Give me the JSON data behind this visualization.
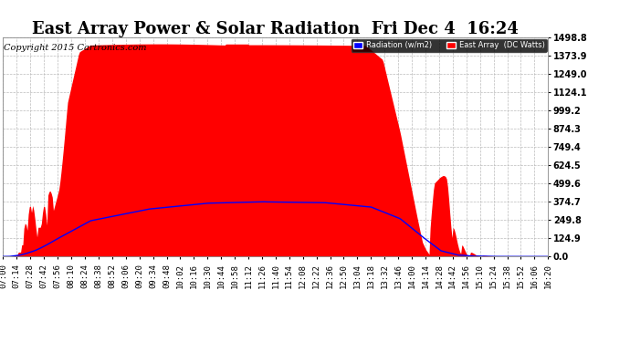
{
  "title": "East Array Power & Solar Radiation  Fri Dec 4  16:24",
  "copyright": "Copyright 2015 Cartronics.com",
  "legend_radiation": "Radiation (w/m2)",
  "legend_east_array": "East Array  (DC Watts)",
  "bg_color": "#ffffff",
  "plot_bg_color": "#ffffff",
  "grid_color": "#bbbbbb",
  "fill_color": "#ff0000",
  "line_color": "#0000ff",
  "ytick_labels": [
    "0.0",
    "124.9",
    "249.8",
    "374.7",
    "499.6",
    "624.5",
    "749.4",
    "874.3",
    "999.2",
    "1124.1",
    "1249.0",
    "1373.9",
    "1498.8"
  ],
  "ytick_values": [
    0.0,
    124.9,
    249.8,
    374.7,
    499.6,
    624.5,
    749.4,
    874.3,
    999.2,
    1124.1,
    1249.0,
    1373.9,
    1498.8
  ],
  "ymax": 1498.8,
  "ymin": 0.0,
  "xtick_labels": [
    "07:00",
    "07:14",
    "07:28",
    "07:42",
    "07:56",
    "08:10",
    "08:24",
    "08:38",
    "08:52",
    "09:06",
    "09:20",
    "09:34",
    "09:48",
    "10:02",
    "10:16",
    "10:30",
    "10:44",
    "10:58",
    "11:12",
    "11:26",
    "11:40",
    "11:54",
    "12:08",
    "12:22",
    "12:36",
    "12:50",
    "13:04",
    "13:18",
    "13:32",
    "13:46",
    "14:00",
    "14:14",
    "14:28",
    "14:42",
    "14:56",
    "15:10",
    "15:24",
    "15:38",
    "15:52",
    "16:06",
    "16:20"
  ],
  "title_fontsize": 13,
  "axis_fontsize": 7,
  "copyright_fontsize": 7
}
